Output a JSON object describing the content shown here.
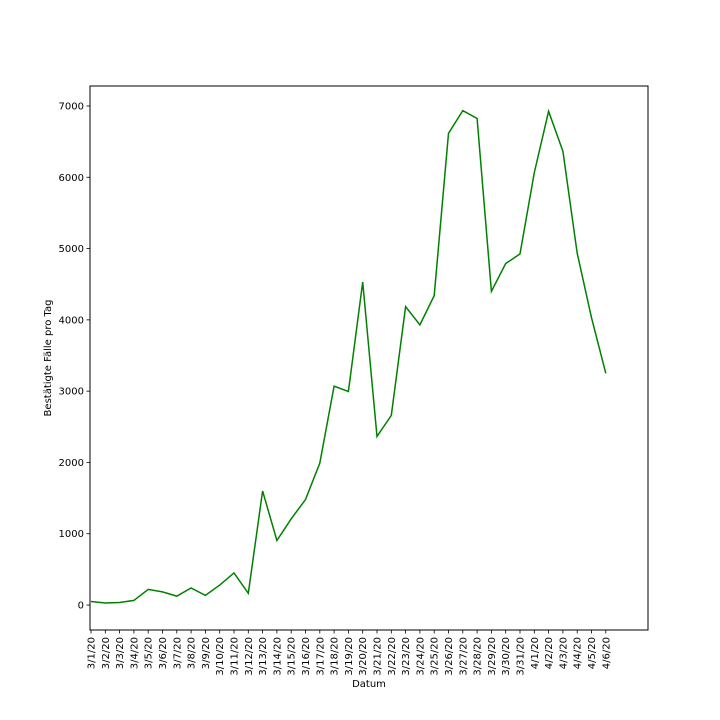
{
  "chart_data": {
    "type": "line",
    "title": "",
    "xlabel": "Datum",
    "ylabel": "Bestätigte Fälle pro Tag",
    "x": [
      "3/1/20",
      "3/2/20",
      "3/3/20",
      "3/4/20",
      "3/5/20",
      "3/6/20",
      "3/7/20",
      "3/8/20",
      "3/9/20",
      "3/10/20",
      "3/11/20",
      "3/12/20",
      "3/13/20",
      "3/14/20",
      "3/15/20",
      "3/16/20",
      "3/17/20",
      "3/18/20",
      "3/19/20",
      "3/20/20",
      "3/21/20",
      "3/22/20",
      "3/23/20",
      "3/24/20",
      "3/25/20",
      "3/26/20",
      "3/27/20",
      "3/28/20",
      "3/29/20",
      "3/30/20",
      "3/31/20",
      "4/1/20",
      "4/2/20",
      "4/3/20",
      "4/4/20",
      "4/5/20",
      "4/6/20"
    ],
    "series": [
      {
        "values": [
          50,
          28,
          35,
          65,
          220,
          185,
          125,
          240,
          135,
          280,
          450,
          165,
          1600,
          905,
          1210,
          1480,
          1990,
          3070,
          2995,
          4530,
          2365,
          2660,
          4185,
          3930,
          4340,
          6615,
          6935,
          6825,
          4400,
          4790,
          4925,
          6065,
          6925,
          6365,
          4935,
          4030,
          3250
        ],
        "color": "#008000"
      }
    ],
    "yticks": [
      0,
      1000,
      2000,
      3000,
      4000,
      5000,
      6000,
      7000
    ],
    "ylim": [
      -350,
      7280
    ],
    "grid": false,
    "legend": "none"
  }
}
